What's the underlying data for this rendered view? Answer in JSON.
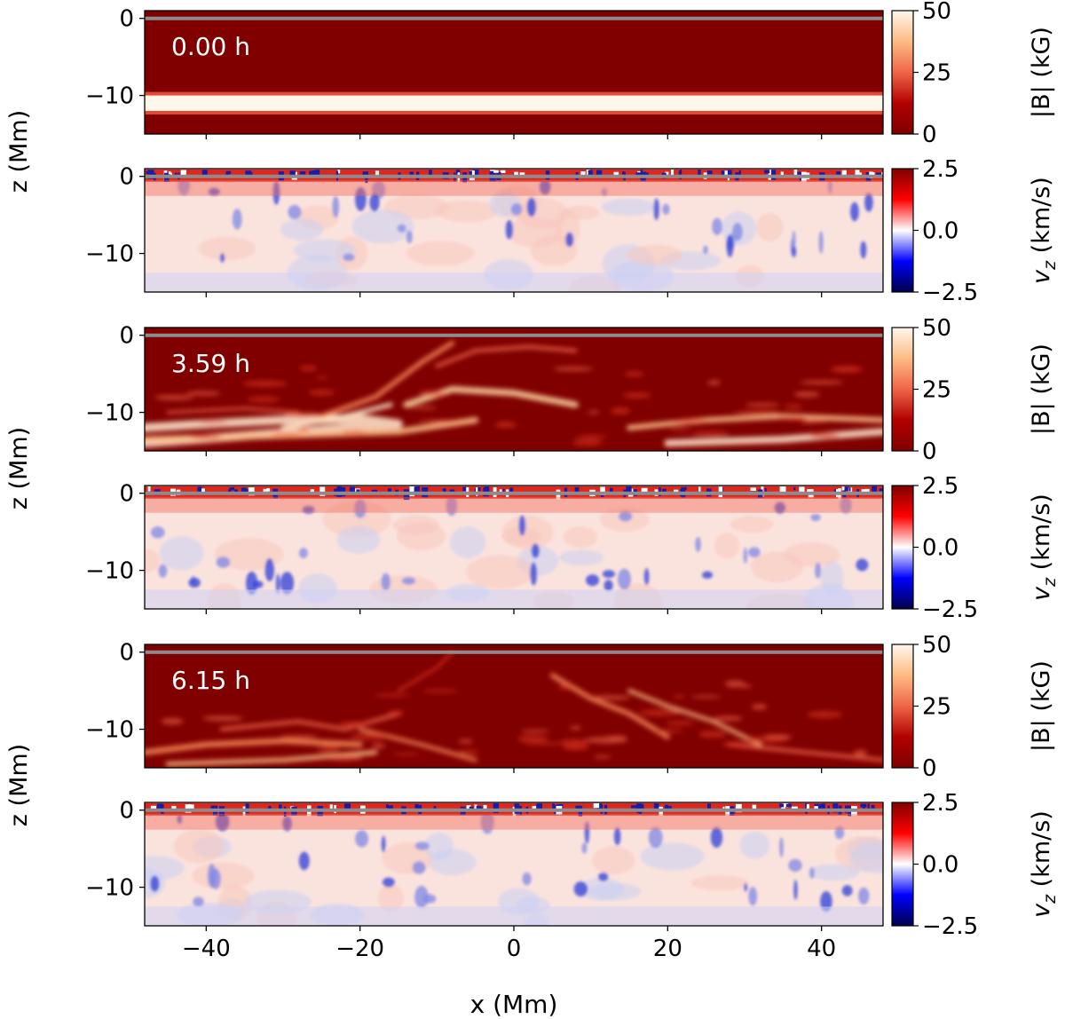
{
  "figure": {
    "panel_labels": [
      "0.00 h",
      "3.59 h",
      "6.15 h"
    ],
    "row_ylabel": "z (Mm)",
    "xlabel": "x (Mm)",
    "b_cbar_label": "|B| (kG)",
    "v_cbar_label_main": "v",
    "v_cbar_label_sub": "z",
    "v_cbar_label_unit": " (km/s)"
  },
  "chart_data": {
    "type": "heatmap",
    "title": "",
    "xlabel": "x (Mm)",
    "ylabel": "z (Mm)",
    "xlim": [
      -48,
      48
    ],
    "ylim": [
      -15,
      1
    ],
    "x_ticks": [
      -40,
      -20,
      0,
      20,
      40
    ],
    "x_tick_labels": [
      "−40",
      "−20",
      "0",
      "20",
      "40"
    ],
    "y_ticks": [
      0,
      -10
    ],
    "y_tick_labels": [
      "0",
      "−10"
    ],
    "reference_line_z": 0,
    "panels": [
      {
        "time": "0.00 h",
        "quantity": "|B| (kG)",
        "vmin": 0,
        "vmax": 50,
        "colormap": "OrRd_r",
        "colorbar_ticks": [
          0,
          25,
          50
        ],
        "colorbar_tick_labels": [
          "0",
          "25",
          "50"
        ],
        "flux_tube_z": [
          -12,
          -10
        ]
      },
      {
        "time": "0.00 h",
        "quantity": "v_z (km/s)",
        "vmin": -2.5,
        "vmax": 2.5,
        "colormap": "seismic",
        "colorbar_ticks": [
          -2.5,
          0.0,
          2.5
        ],
        "colorbar_tick_labels": [
          "−2.5",
          "0.0",
          "2.5"
        ]
      },
      {
        "time": "3.59 h",
        "quantity": "|B| (kG)",
        "vmin": 0,
        "vmax": 50,
        "colormap": "OrRd_r",
        "colorbar_ticks": [
          0,
          25,
          50
        ],
        "colorbar_tick_labels": [
          "0",
          "25",
          "50"
        ]
      },
      {
        "time": "3.59 h",
        "quantity": "v_z (km/s)",
        "vmin": -2.5,
        "vmax": 2.5,
        "colormap": "seismic",
        "colorbar_ticks": [
          -2.5,
          0.0,
          2.5
        ],
        "colorbar_tick_labels": [
          "−2.5",
          "0.0",
          "2.5"
        ]
      },
      {
        "time": "6.15 h",
        "quantity": "|B| (kG)",
        "vmin": 0,
        "vmax": 50,
        "colormap": "OrRd_r",
        "colorbar_ticks": [
          0,
          25,
          50
        ],
        "colorbar_tick_labels": [
          "0",
          "25",
          "50"
        ]
      },
      {
        "time": "6.15 h",
        "quantity": "v_z (km/s)",
        "vmin": -2.5,
        "vmax": 2.5,
        "colormap": "seismic",
        "colorbar_ticks": [
          -2.5,
          0.0,
          2.5
        ],
        "colorbar_tick_labels": [
          "−2.5",
          "0.0",
          "2.5"
        ]
      }
    ]
  }
}
